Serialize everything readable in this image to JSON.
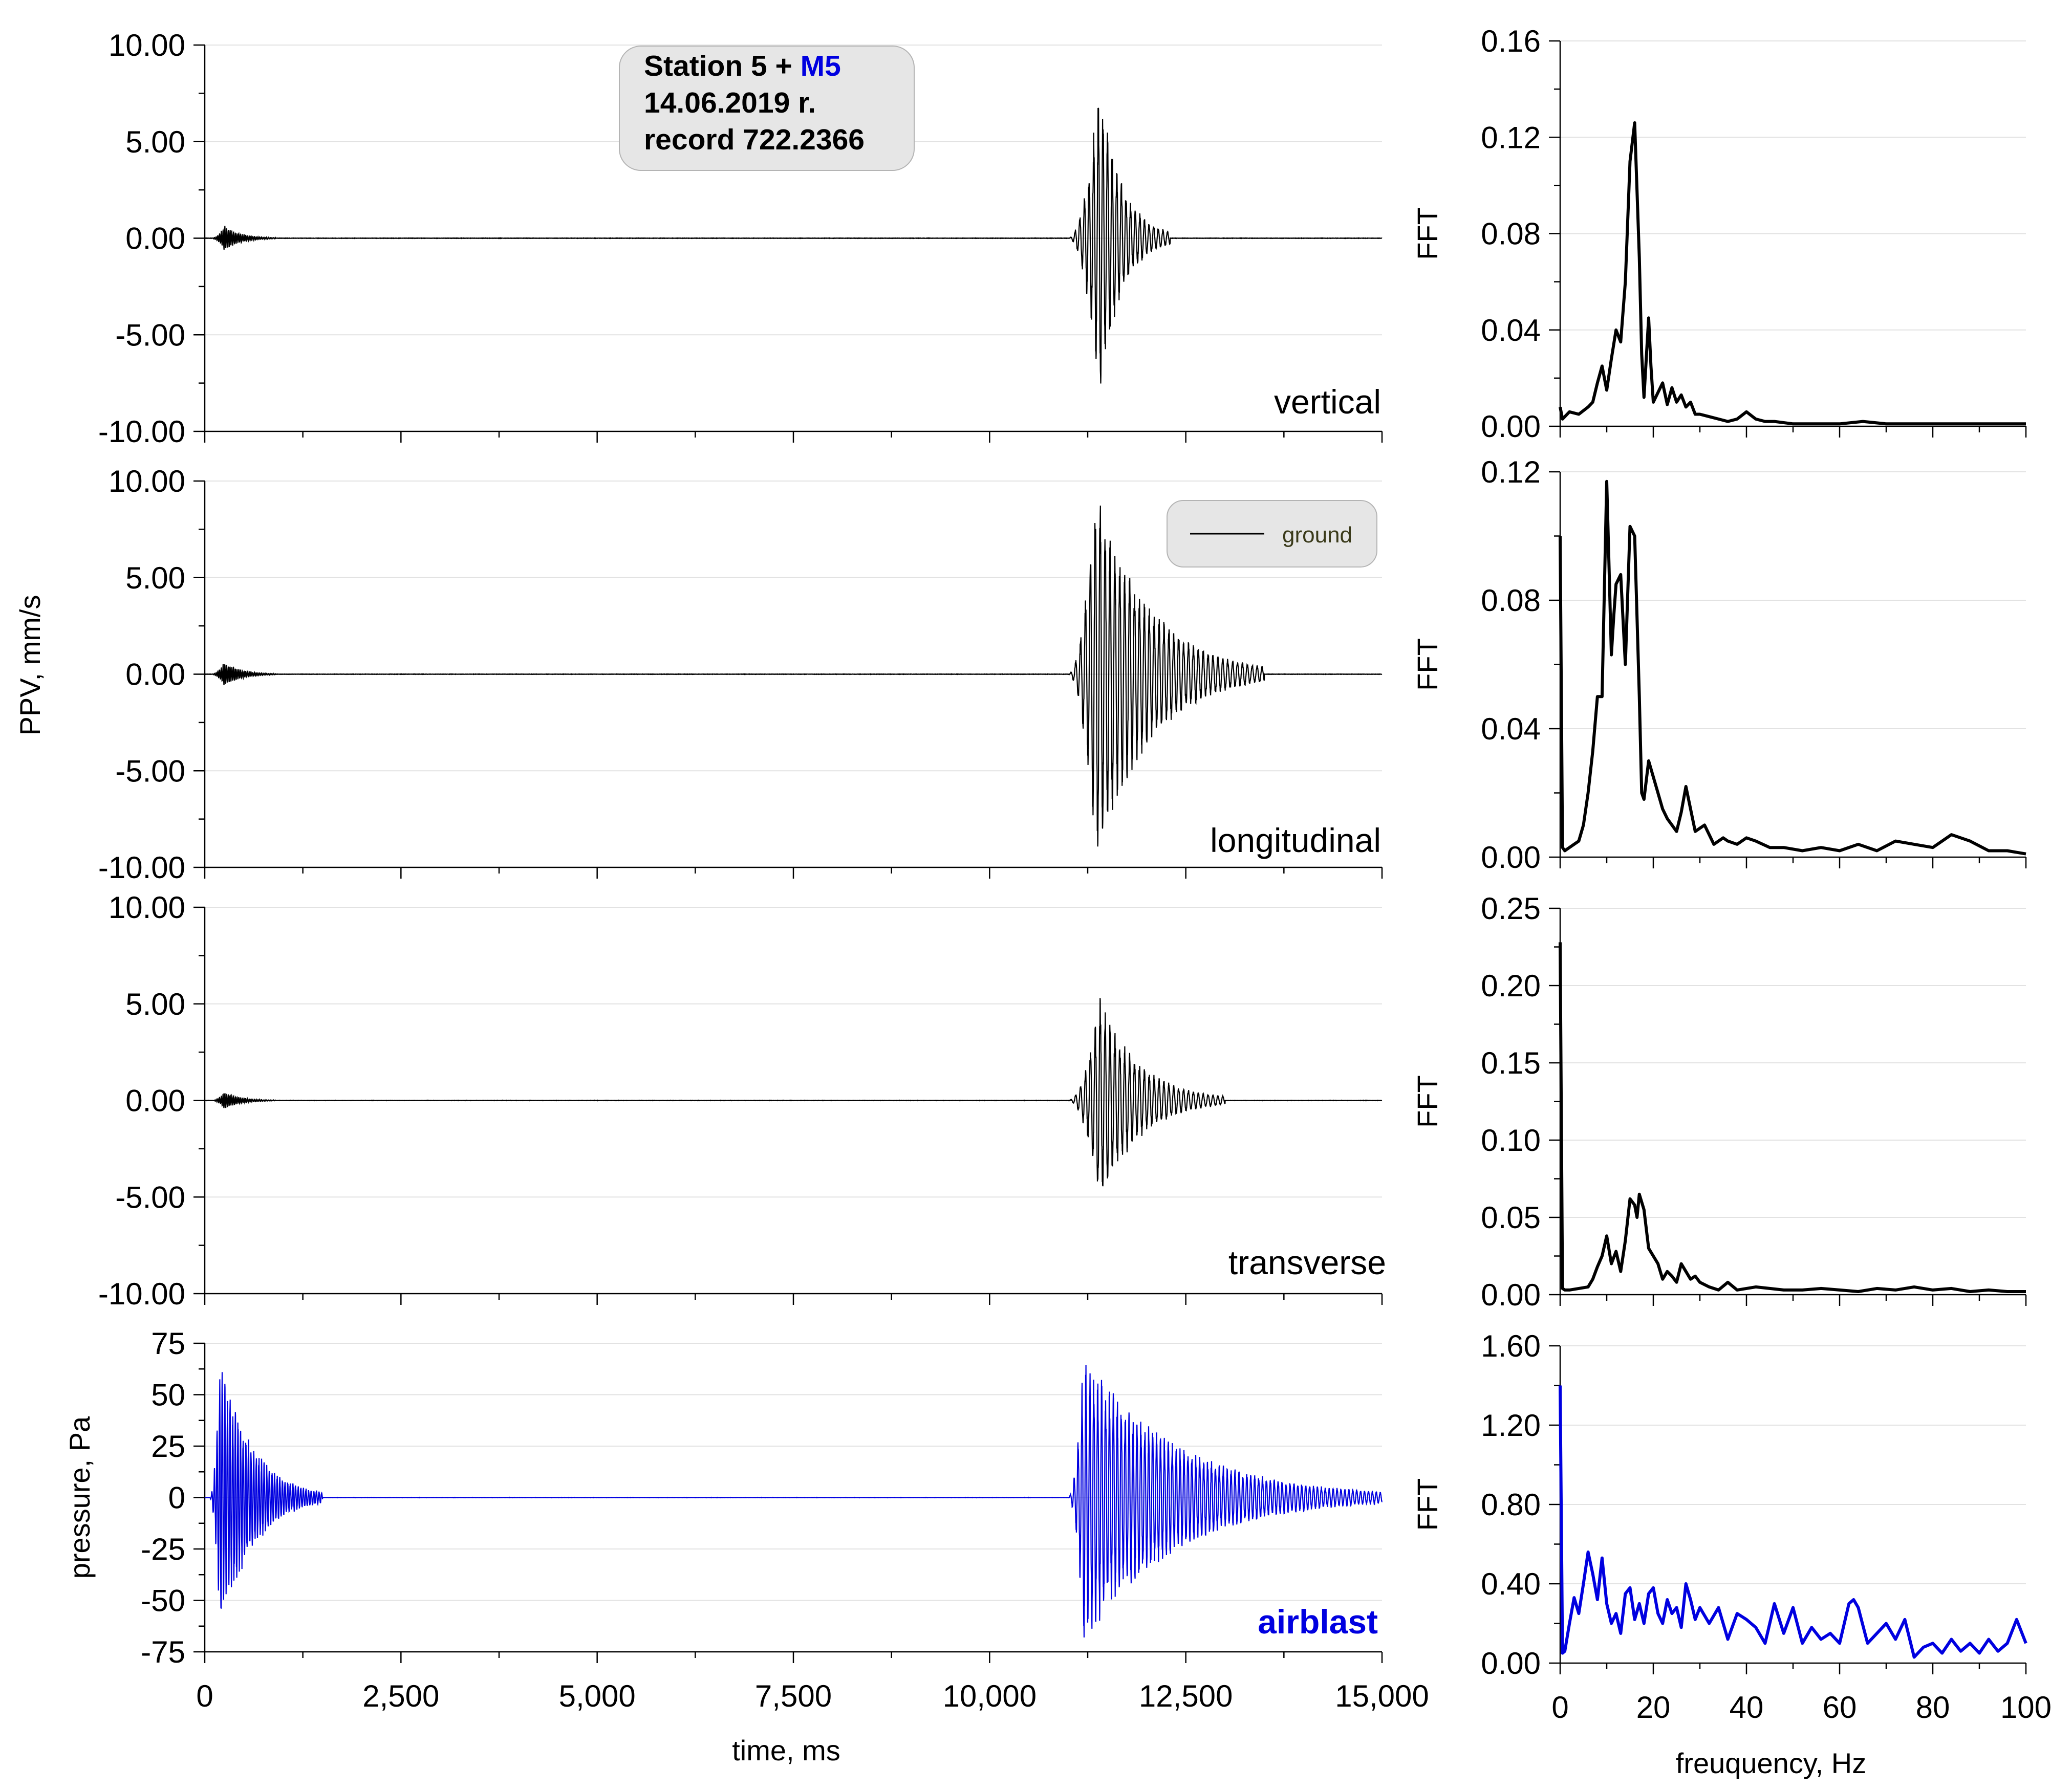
{
  "info_box": {
    "line1_prefix": "Station 5 + ",
    "line1_highlight": "M5",
    "line2": "14.06.2019 r.",
    "line3": "record 722.2366"
  },
  "legend": {
    "label": "ground"
  },
  "shared_labels": {
    "left_ylabel": "PPV, mm/s",
    "left_xlabel": "time, ms",
    "right_xlabel": "freuquency, Hz"
  },
  "colors": {
    "ground": "#000000",
    "airblast": "#0000e0",
    "grid": "#e2e2e2",
    "box_fill": "#e6e6e6"
  },
  "chart_data": [
    {
      "id": "vertical-time",
      "type": "line",
      "label": "vertical",
      "xlim": [
        0,
        15000
      ],
      "ylim": [
        -10,
        10
      ],
      "yticks": [
        10,
        5,
        0,
        -5,
        -10
      ],
      "ytick_labels": [
        "10.00",
        "5.00",
        "0.00",
        "-5.00",
        "-10.00"
      ],
      "xticks": [
        0,
        2500,
        5000,
        7500,
        10000,
        12500,
        15000
      ],
      "series": [
        {
          "color": "#000000",
          "bursts": [
            {
              "t0": 80,
              "t1": 900,
              "freq_hz": 45,
              "peak": 0.6,
              "peak_t": 250
            },
            {
              "t0": 11000,
              "t1": 12300,
              "freq_hz": 17,
              "peak": 7.5,
              "peak_t": 11400,
              "min": -7.9
            }
          ]
        }
      ]
    },
    {
      "id": "longitudinal-time",
      "type": "line",
      "label": "longitudinal",
      "xlim": [
        0,
        15000
      ],
      "ylim": [
        -10,
        10
      ],
      "yticks": [
        10,
        5,
        0,
        -5,
        -10
      ],
      "ytick_labels": [
        "10.00",
        "5.00",
        "0.00",
        "-5.00",
        "-10.00"
      ],
      "xticks": [
        0,
        2500,
        5000,
        7500,
        10000,
        12500,
        15000
      ],
      "series": [
        {
          "name": "ground",
          "color": "#000000",
          "bursts": [
            {
              "t0": 80,
              "t1": 900,
              "freq_hz": 45,
              "peak": 0.6,
              "peak_t": 250
            },
            {
              "t0": 11000,
              "t1": 13500,
              "freq_hz": 16,
              "peak": 9.2,
              "peak_t": 11350,
              "min": -9.4
            }
          ]
        }
      ]
    },
    {
      "id": "transverse-time",
      "type": "line",
      "label": "transverse",
      "xlim": [
        0,
        15000
      ],
      "ylim": [
        -10,
        10
      ],
      "yticks": [
        10,
        5,
        0,
        -5,
        -10
      ],
      "ytick_labels": [
        "10.00",
        "5.00",
        "0.00",
        "-5.00",
        "-10.00"
      ],
      "xticks": [
        0,
        2500,
        5000,
        7500,
        10000,
        12500,
        15000
      ],
      "series": [
        {
          "color": "#000000",
          "bursts": [
            {
              "t0": 80,
              "t1": 900,
              "freq_hz": 45,
              "peak": 0.4,
              "peak_t": 250
            },
            {
              "t0": 11000,
              "t1": 13000,
              "freq_hz": 16,
              "peak": 5.0,
              "peak_t": 11400,
              "min": -5.9
            }
          ]
        }
      ]
    },
    {
      "id": "airblast-time",
      "type": "line",
      "label": "airblast",
      "ylabel": "pressure, Pa",
      "xlabel": "time, ms",
      "xlim": [
        0,
        15000
      ],
      "ylim": [
        -75,
        75
      ],
      "yticks": [
        75,
        50,
        25,
        0,
        -25,
        -50,
        -75
      ],
      "ytick_labels": [
        "75",
        "50",
        "25",
        "0",
        "-25",
        "-50",
        "-75"
      ],
      "xticks": [
        0,
        2500,
        5000,
        7500,
        10000,
        12500,
        15000
      ],
      "xtick_labels": [
        "0",
        "2,500",
        "5,000",
        "7,500",
        "10,000",
        "12,500",
        "15,000"
      ],
      "series": [
        {
          "color": "#0000e0",
          "bursts": [
            {
              "t0": 60,
              "t1": 1500,
              "freq_hz": 30,
              "peak": 64,
              "peak_t": 200,
              "min": -47
            },
            {
              "t0": 11000,
              "t1": 15000,
              "freq_hz": 20,
              "peak": 65,
              "peak_t": 11200,
              "min": -70
            }
          ]
        }
      ]
    },
    {
      "id": "vertical-fft",
      "type": "line",
      "ylabel": "FFT",
      "xlim": [
        0,
        100
      ],
      "ylim": [
        0,
        0.16
      ],
      "yticks": [
        0.16,
        0.12,
        0.08,
        0.04,
        0
      ],
      "ytick_labels": [
        "0.16",
        "0.12",
        "0.08",
        "0.04",
        "0.00"
      ],
      "xticks": [
        0,
        20,
        40,
        60,
        80,
        100
      ],
      "series": [
        {
          "color": "#000000",
          "x": [
            0,
            0.5,
            2,
            4,
            6,
            7,
            8,
            9,
            10,
            11,
            12,
            13,
            14,
            15,
            16,
            17,
            17.5,
            18,
            19,
            19.5,
            20,
            21,
            22,
            23,
            24,
            25,
            26,
            27,
            28,
            29,
            30,
            32,
            34,
            36,
            38,
            40,
            42,
            44,
            46,
            50,
            55,
            60,
            65,
            70,
            75,
            80,
            85,
            90,
            95,
            100
          ],
          "y": [
            0.008,
            0.003,
            0.006,
            0.005,
            0.008,
            0.01,
            0.018,
            0.025,
            0.015,
            0.028,
            0.04,
            0.035,
            0.06,
            0.11,
            0.126,
            0.07,
            0.03,
            0.012,
            0.045,
            0.025,
            0.01,
            0.014,
            0.018,
            0.009,
            0.016,
            0.01,
            0.013,
            0.008,
            0.01,
            0.005,
            0.005,
            0.004,
            0.003,
            0.002,
            0.003,
            0.006,
            0.003,
            0.002,
            0.002,
            0.001,
            0.001,
            0.001,
            0.002,
            0.001,
            0.001,
            0.001,
            0.001,
            0.001,
            0.001,
            0.001
          ]
        }
      ]
    },
    {
      "id": "longitudinal-fft",
      "type": "line",
      "ylabel": "FFT",
      "xlim": [
        0,
        100
      ],
      "ylim": [
        0,
        0.12
      ],
      "yticks": [
        0.12,
        0.08,
        0.04,
        0
      ],
      "ytick_labels": [
        "0.12",
        "0.08",
        "0.04",
        "0.00"
      ],
      "xticks": [
        0,
        20,
        40,
        60,
        80,
        100
      ],
      "series": [
        {
          "color": "#000000",
          "x": [
            0,
            0.5,
            1,
            2,
            3,
            4,
            5,
            6,
            7,
            8,
            9,
            10,
            10.5,
            11,
            11.5,
            12,
            13,
            14,
            15,
            16,
            17,
            17.5,
            18,
            19,
            20,
            21,
            22,
            23,
            24,
            25,
            26,
            27,
            28,
            29,
            30,
            31,
            32,
            33,
            34,
            35,
            36,
            38,
            40,
            42,
            45,
            48,
            52,
            56,
            60,
            64,
            68,
            72,
            76,
            80,
            84,
            88,
            92,
            96,
            100
          ],
          "y": [
            0.1,
            0.003,
            0.002,
            0.003,
            0.004,
            0.005,
            0.01,
            0.02,
            0.033,
            0.05,
            0.05,
            0.117,
            0.09,
            0.063,
            0.075,
            0.085,
            0.088,
            0.06,
            0.103,
            0.1,
            0.05,
            0.02,
            0.018,
            0.03,
            0.025,
            0.02,
            0.015,
            0.012,
            0.01,
            0.008,
            0.014,
            0.022,
            0.015,
            0.008,
            0.009,
            0.01,
            0.007,
            0.004,
            0.005,
            0.006,
            0.005,
            0.004,
            0.006,
            0.005,
            0.003,
            0.003,
            0.002,
            0.003,
            0.002,
            0.004,
            0.002,
            0.005,
            0.004,
            0.003,
            0.007,
            0.005,
            0.002,
            0.002,
            0.001
          ]
        }
      ]
    },
    {
      "id": "transverse-fft",
      "type": "line",
      "ylabel": "FFT",
      "xlim": [
        0,
        100
      ],
      "ylim": [
        0,
        0.25
      ],
      "yticks": [
        0.25,
        0.2,
        0.15,
        0.1,
        0.05,
        0
      ],
      "ytick_labels": [
        "0.25",
        "0.20",
        "0.15",
        "0.10",
        "0.05",
        "0.00"
      ],
      "xticks": [
        0,
        20,
        40,
        60,
        80,
        100
      ],
      "series": [
        {
          "color": "#000000",
          "x": [
            0,
            0.5,
            1,
            2,
            4,
            6,
            7,
            8,
            9,
            10,
            11,
            12,
            13,
            14,
            15,
            16,
            16.5,
            17,
            18,
            19,
            20,
            21,
            22,
            23,
            24,
            25,
            26,
            27,
            28,
            29,
            30,
            32,
            34,
            36,
            38,
            40,
            42,
            45,
            48,
            52,
            56,
            60,
            64,
            68,
            72,
            76,
            80,
            84,
            88,
            92,
            96,
            100
          ],
          "y": [
            0.228,
            0.004,
            0.003,
            0.003,
            0.004,
            0.005,
            0.01,
            0.018,
            0.025,
            0.038,
            0.02,
            0.028,
            0.015,
            0.035,
            0.062,
            0.058,
            0.05,
            0.065,
            0.055,
            0.03,
            0.025,
            0.02,
            0.01,
            0.015,
            0.012,
            0.008,
            0.02,
            0.015,
            0.01,
            0.012,
            0.008,
            0.005,
            0.003,
            0.008,
            0.003,
            0.004,
            0.005,
            0.004,
            0.003,
            0.003,
            0.004,
            0.003,
            0.002,
            0.004,
            0.003,
            0.005,
            0.003,
            0.004,
            0.002,
            0.003,
            0.002,
            0.002
          ]
        }
      ]
    },
    {
      "id": "airblast-fft",
      "type": "line",
      "ylabel": "FFT",
      "xlabel": "freuquency, Hz",
      "xlim": [
        0,
        100
      ],
      "ylim": [
        0,
        1.6
      ],
      "yticks": [
        1.6,
        1.2,
        0.8,
        0.4,
        0
      ],
      "ytick_labels": [
        "1.60",
        "1.20",
        "0.80",
        "0.40",
        "0.00"
      ],
      "xticks": [
        0,
        20,
        40,
        60,
        80,
        100
      ],
      "xtick_labels": [
        "0",
        "20",
        "40",
        "60",
        "80",
        "100"
      ],
      "series": [
        {
          "color": "#0000e0",
          "x": [
            0,
            0.5,
            1,
            2,
            3,
            4,
            5,
            6,
            7,
            8,
            9,
            10,
            11,
            12,
            13,
            14,
            15,
            16,
            17,
            18,
            19,
            20,
            21,
            22,
            23,
            24,
            25,
            26,
            27,
            28,
            29,
            30,
            32,
            34,
            36,
            38,
            40,
            42,
            44,
            46,
            48,
            50,
            52,
            54,
            56,
            58,
            60,
            62,
            63,
            64,
            66,
            68,
            70,
            72,
            74,
            76,
            78,
            80,
            82,
            84,
            86,
            88,
            90,
            92,
            94,
            96,
            98,
            100
          ],
          "y": [
            1.4,
            0.05,
            0.06,
            0.2,
            0.33,
            0.25,
            0.4,
            0.56,
            0.45,
            0.32,
            0.53,
            0.3,
            0.2,
            0.25,
            0.15,
            0.35,
            0.38,
            0.22,
            0.3,
            0.2,
            0.35,
            0.38,
            0.25,
            0.2,
            0.32,
            0.25,
            0.28,
            0.18,
            0.4,
            0.32,
            0.22,
            0.28,
            0.2,
            0.28,
            0.12,
            0.25,
            0.22,
            0.18,
            0.1,
            0.3,
            0.15,
            0.28,
            0.1,
            0.18,
            0.12,
            0.15,
            0.1,
            0.3,
            0.32,
            0.28,
            0.1,
            0.15,
            0.2,
            0.12,
            0.22,
            0.03,
            0.08,
            0.1,
            0.05,
            0.12,
            0.06,
            0.1,
            0.05,
            0.12,
            0.06,
            0.1,
            0.22,
            0.1
          ]
        }
      ]
    }
  ]
}
